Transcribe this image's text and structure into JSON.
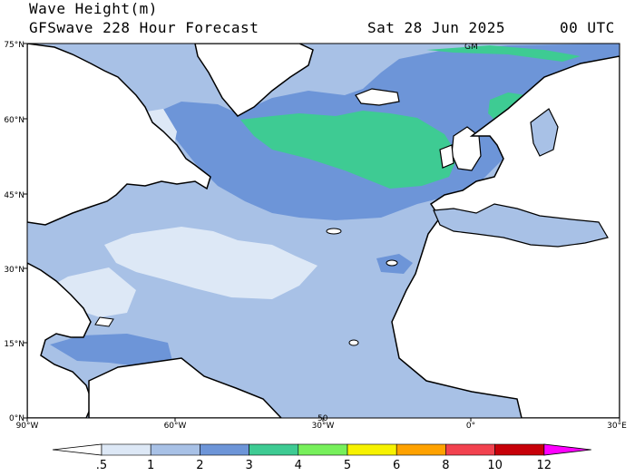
{
  "header": {
    "title": "Wave Height(m)",
    "subtitle": "GFSwave 228 Hour Forecast",
    "date": "Sat 28 Jun 2025",
    "time": "00 UTC"
  },
  "map": {
    "region": "North Atlantic",
    "lat_range_deg": [
      0,
      75
    ],
    "lon_range_deg": [
      -90,
      30
    ],
    "lat_ticks": [
      "0°N",
      "15°N",
      "30°N",
      "45°N",
      "60°N",
      "75°N"
    ],
    "lon_ticks": [
      "90°W",
      "60°W",
      "30°W",
      "0°",
      "30°E"
    ],
    "contour_labels": [
      "GM",
      "50"
    ]
  },
  "colorbar": {
    "levels": [
      ".5",
      "1",
      "2",
      "3",
      "4",
      "5",
      "6",
      "8",
      "10",
      "12"
    ],
    "colors": [
      "#ffffff",
      "#dde8f6",
      "#a8c1e6",
      "#6d95d8",
      "#3ecb93",
      "#77f05b",
      "#f7f200",
      "#ffa200",
      "#f2424f",
      "#c70009",
      "#ff00ff"
    ]
  }
}
